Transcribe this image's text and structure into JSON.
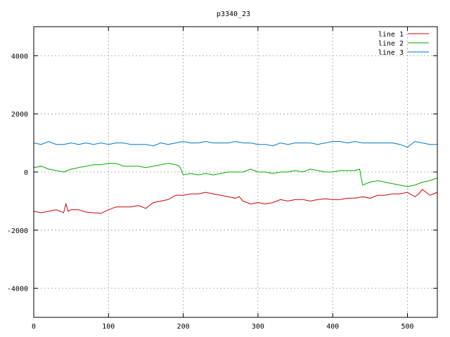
{
  "chart_data": {
    "type": "line",
    "title": "p3340_23",
    "xlabel": "",
    "ylabel": "",
    "xlim": [
      0,
      540
    ],
    "ylim": [
      -5000,
      5000
    ],
    "xticks": [
      0,
      100,
      200,
      300,
      400,
      500
    ],
    "yticks": [
      -4000,
      -2000,
      0,
      2000,
      4000
    ],
    "grid": true,
    "legend": "top-right",
    "series": [
      {
        "name": "line 1",
        "color": "#cc0000",
        "x": [
          0,
          10,
          20,
          30,
          40,
          43,
          46,
          50,
          60,
          70,
          80,
          90,
          100,
          110,
          120,
          130,
          140,
          150,
          160,
          170,
          180,
          190,
          200,
          210,
          220,
          230,
          240,
          250,
          260,
          270,
          275,
          280,
          290,
          300,
          310,
          320,
          330,
          340,
          350,
          360,
          370,
          380,
          390,
          400,
          410,
          420,
          430,
          440,
          450,
          460,
          470,
          480,
          490,
          500,
          510,
          515,
          520,
          530,
          540
        ],
        "y": [
          -1350,
          -1400,
          -1350,
          -1300,
          -1400,
          -1100,
          -1350,
          -1300,
          -1300,
          -1380,
          -1400,
          -1420,
          -1300,
          -1200,
          -1200,
          -1200,
          -1150,
          -1250,
          -1050,
          -1000,
          -950,
          -800,
          -800,
          -750,
          -750,
          -700,
          -750,
          -800,
          -850,
          -900,
          -850,
          -1000,
          -1100,
          -1050,
          -1100,
          -1050,
          -950,
          -1000,
          -950,
          -950,
          -1000,
          -950,
          -920,
          -950,
          -950,
          -900,
          -900,
          -850,
          -900,
          -800,
          -800,
          -750,
          -750,
          -700,
          -850,
          -750,
          -600,
          -800,
          -700
        ]
      },
      {
        "name": "line 2",
        "color": "#00aa00",
        "x": [
          0,
          10,
          20,
          30,
          40,
          50,
          60,
          70,
          80,
          90,
          100,
          110,
          120,
          130,
          140,
          150,
          160,
          170,
          180,
          190,
          195,
          200,
          210,
          220,
          230,
          240,
          250,
          260,
          270,
          280,
          290,
          300,
          310,
          320,
          330,
          340,
          350,
          360,
          370,
          380,
          390,
          400,
          410,
          420,
          430,
          436,
          440,
          450,
          460,
          470,
          480,
          490,
          500,
          510,
          520,
          530,
          540
        ],
        "y": [
          150,
          200,
          100,
          50,
          0,
          100,
          150,
          200,
          250,
          250,
          300,
          300,
          200,
          200,
          200,
          150,
          200,
          250,
          300,
          250,
          200,
          -100,
          -50,
          -100,
          -50,
          -100,
          -50,
          0,
          0,
          0,
          100,
          0,
          0,
          -50,
          0,
          0,
          50,
          0,
          100,
          50,
          0,
          0,
          50,
          50,
          50,
          100,
          -450,
          -350,
          -300,
          -350,
          -400,
          -450,
          -500,
          -450,
          -350,
          -300,
          -200
        ]
      },
      {
        "name": "line 3",
        "color": "#0077cc",
        "x": [
          0,
          10,
          20,
          30,
          40,
          50,
          60,
          70,
          80,
          90,
          100,
          110,
          120,
          130,
          140,
          150,
          160,
          170,
          180,
          190,
          200,
          210,
          220,
          230,
          240,
          250,
          260,
          270,
          280,
          290,
          300,
          310,
          320,
          330,
          340,
          350,
          360,
          370,
          380,
          390,
          400,
          410,
          420,
          430,
          440,
          450,
          460,
          470,
          480,
          490,
          500,
          510,
          520,
          530,
          540
        ],
        "y": [
          1000,
          950,
          1050,
          950,
          950,
          1000,
          950,
          1000,
          950,
          1000,
          950,
          1000,
          1000,
          950,
          950,
          950,
          900,
          1000,
          950,
          1000,
          1050,
          1000,
          1000,
          1050,
          1000,
          1000,
          1000,
          1050,
          1000,
          1000,
          950,
          950,
          900,
          1000,
          950,
          1000,
          1000,
          1000,
          950,
          1000,
          1050,
          1050,
          1000,
          1050,
          1000,
          1000,
          1000,
          1000,
          1000,
          950,
          850,
          1050,
          1000,
          950,
          950
        ]
      }
    ]
  }
}
